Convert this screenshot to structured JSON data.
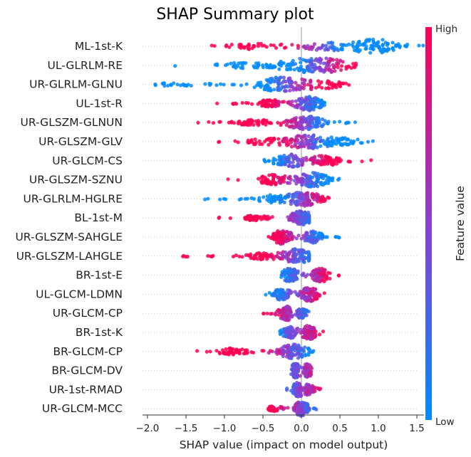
{
  "chart_data": {
    "type": "scatter",
    "subtype": "shap-beeswarm",
    "title": "SHAP Summary plot",
    "xlabel": "SHAP value (impact on model output)",
    "xlim": [
      -2.1,
      1.85
    ],
    "xticks": [
      -2.0,
      -1.5,
      -1.0,
      -0.5,
      0.0,
      0.5,
      1.0,
      1.5
    ],
    "xtick_labels": [
      "−2.0",
      "−1.5",
      "−1.0",
      "−0.5",
      "0.0",
      "0.5",
      "1.0",
      "1.5"
    ],
    "colorbar": {
      "label": "Feature value",
      "high": "High",
      "low": "Low",
      "high_color": "#ff0052",
      "low_color": "#008bfb"
    },
    "features": [
      {
        "name": "ML-1st-K",
        "min": -1.2,
        "max": 1.7,
        "centers": [
          [
            0.95,
            1.0
          ],
          [
            0.3,
            0.55
          ],
          [
            -0.6,
            0.4
          ]
        ],
        "color_slope": -1.0,
        "color_mid": 0.2
      },
      {
        "name": "UL-GLRLM-RE",
        "min": -1.65,
        "max": 1.05,
        "centers": [
          [
            0.3,
            1.0
          ],
          [
            -0.1,
            0.6
          ],
          [
            -0.8,
            0.35
          ]
        ],
        "color_slope": 1.0,
        "color_mid": 0.25
      },
      {
        "name": "UR-GLRLM-GLNU",
        "min": -1.9,
        "max": 0.7,
        "centers": [
          [
            -0.3,
            1.0
          ],
          [
            0.25,
            0.6
          ],
          [
            -1.6,
            0.2
          ]
        ],
        "color_slope": 1.0,
        "color_mid": -0.1
      },
      {
        "name": "UL-1st-R",
        "min": -1.1,
        "max": 0.3,
        "centers": [
          [
            0.1,
            1.0
          ],
          [
            -0.4,
            0.5
          ]
        ],
        "color_slope": -1.0,
        "color_mid": -0.05
      },
      {
        "name": "UR-GLSZM-GLNUN",
        "min": -1.35,
        "max": 0.7,
        "centers": [
          [
            0.05,
            1.0
          ],
          [
            -0.6,
            0.4
          ]
        ],
        "color_slope": -1.0,
        "color_mid": 0.0
      },
      {
        "name": "UR-GLSZM-GLV",
        "min": -1.1,
        "max": 1.1,
        "centers": [
          [
            0.05,
            1.0
          ],
          [
            0.5,
            0.5
          ],
          [
            -0.5,
            0.4
          ]
        ],
        "color_slope": -1.0,
        "color_mid": 0.05
      },
      {
        "name": "UR-GLCM-CS",
        "min": -0.7,
        "max": 0.95,
        "centers": [
          [
            -0.15,
            0.9
          ],
          [
            0.3,
            0.7
          ]
        ],
        "color_slope": 1.0,
        "color_mid": 0.0
      },
      {
        "name": "UR-GLSZM-SZNU",
        "min": -1.0,
        "max": 0.65,
        "centers": [
          [
            0.15,
            1.0
          ],
          [
            -0.35,
            0.7
          ]
        ],
        "color_slope": -1.0,
        "color_mid": -0.05
      },
      {
        "name": "UR-GLRLM-HGLRE",
        "min": -1.35,
        "max": 0.45,
        "centers": [
          [
            0.05,
            1.0
          ],
          [
            -0.35,
            0.5
          ]
        ],
        "color_slope": 1.0,
        "color_mid": 0.0
      },
      {
        "name": "BL-1st-M",
        "min": -1.1,
        "max": 0.1,
        "centers": [
          [
            0.0,
            1.0
          ],
          [
            -0.6,
            0.3
          ]
        ],
        "color_slope": -1.0,
        "color_mid": -0.1
      },
      {
        "name": "UR-GLSZM-SAHGLE",
        "min": -0.5,
        "max": 0.5,
        "centers": [
          [
            -0.25,
            1.0
          ],
          [
            0.15,
            0.8
          ]
        ],
        "color_slope": -1.0,
        "color_mid": 0.0
      },
      {
        "name": "UR-GLSZM-LAHGLE",
        "min": -1.55,
        "max": 0.1,
        "centers": [
          [
            -0.05,
            1.0
          ],
          [
            -0.5,
            0.4
          ]
        ],
        "color_slope": -1.0,
        "color_mid": -0.15
      },
      {
        "name": "BR-1st-E",
        "min": -0.3,
        "max": 0.5,
        "centers": [
          [
            -0.15,
            1.0
          ],
          [
            0.25,
            1.0
          ]
        ],
        "color_slope": 1.0,
        "color_mid": 0.05
      },
      {
        "name": "UL-GLCM-LDMN",
        "min": -0.5,
        "max": 0.4,
        "centers": [
          [
            0.1,
            1.0
          ],
          [
            -0.25,
            0.8
          ]
        ],
        "color_slope": 1.0,
        "color_mid": -0.05
      },
      {
        "name": "UR-GLCM-CP",
        "min": -0.5,
        "max": 0.1,
        "centers": [
          [
            -0.2,
            1.0
          ],
          [
            0.0,
            0.6
          ]
        ],
        "color_slope": -1.0,
        "color_mid": -0.1
      },
      {
        "name": "BR-1st-K",
        "min": -0.35,
        "max": 0.3,
        "centers": [
          [
            -0.15,
            0.8
          ],
          [
            0.1,
            1.0
          ]
        ],
        "color_slope": 1.0,
        "color_mid": -0.05
      },
      {
        "name": "BR-GLCM-CP",
        "min": -1.4,
        "max": 0.2,
        "centers": [
          [
            -0.1,
            1.0
          ],
          [
            -0.9,
            0.4
          ]
        ],
        "color_slope": -1.0,
        "color_mid": -0.2
      },
      {
        "name": "BR-GLCM-DV",
        "min": -0.15,
        "max": 0.15,
        "centers": [
          [
            -0.08,
            1.0
          ],
          [
            0.08,
            0.9
          ]
        ],
        "color_slope": 1.0,
        "color_mid": 0.0
      },
      {
        "name": "UR-1st-RMAD",
        "min": -0.2,
        "max": 0.25,
        "centers": [
          [
            -0.05,
            1.0
          ],
          [
            0.1,
            0.6
          ]
        ],
        "color_slope": 1.0,
        "color_mid": 0.0
      },
      {
        "name": "UR-GLCM-MCC",
        "min": -0.5,
        "max": 0.2,
        "centers": [
          [
            0.0,
            1.0
          ],
          [
            -0.35,
            0.3
          ]
        ],
        "color_slope": -1.0,
        "color_mid": -0.05
      }
    ]
  }
}
